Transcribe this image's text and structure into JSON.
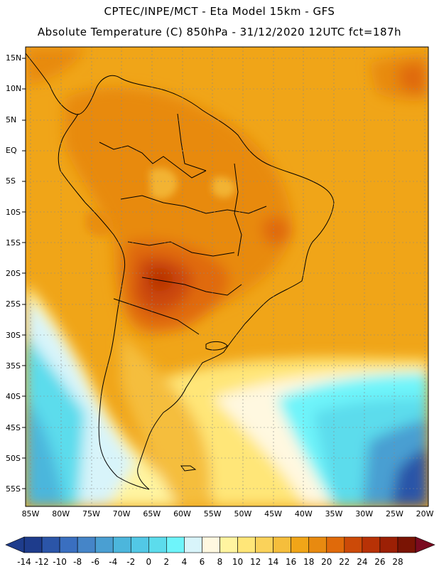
{
  "header": {
    "line1": "CPTEC/INPE/MCT -  Eta Model 15km - GFS",
    "line2": "Absolute Temperature (C) 850hPa - 31/12/2020 12UTC fct=187h"
  },
  "map": {
    "lat_labels": [
      "15N",
      "10N",
      "5N",
      "EQ",
      "5S",
      "10S",
      "15S",
      "20S",
      "25S",
      "30S",
      "35S",
      "40S",
      "45S",
      "50S",
      "55S"
    ],
    "lon_labels": [
      "85W",
      "80W",
      "75W",
      "70W",
      "65W",
      "60W",
      "55W",
      "50W",
      "45W",
      "40W",
      "35W",
      "30W",
      "25W",
      "20W"
    ]
  },
  "colorbar": {
    "labels": [
      "-14",
      "-12",
      "-10",
      "-8",
      "-6",
      "-4",
      "-2",
      "0",
      "2",
      "4",
      "6",
      "8",
      "10",
      "12",
      "14",
      "16",
      "18",
      "20",
      "22",
      "24",
      "26",
      "28"
    ],
    "colors": [
      "#1e3c8c",
      "#2b55a8",
      "#3a6fc0",
      "#4585c8",
      "#4a9fd2",
      "#4cb6dc",
      "#52c8e6",
      "#5cdcec",
      "#6ef4fa",
      "#d8f4fa",
      "#fff8e0",
      "#fff4a0",
      "#ffe678",
      "#fad25a",
      "#f5be3c",
      "#f0a518",
      "#e88a10",
      "#e06a0a",
      "#cc4a08",
      "#b83206",
      "#9c2005",
      "#7a1404"
    ],
    "low_color": "#1e3c8c",
    "high_color": "#7a0a20"
  }
}
